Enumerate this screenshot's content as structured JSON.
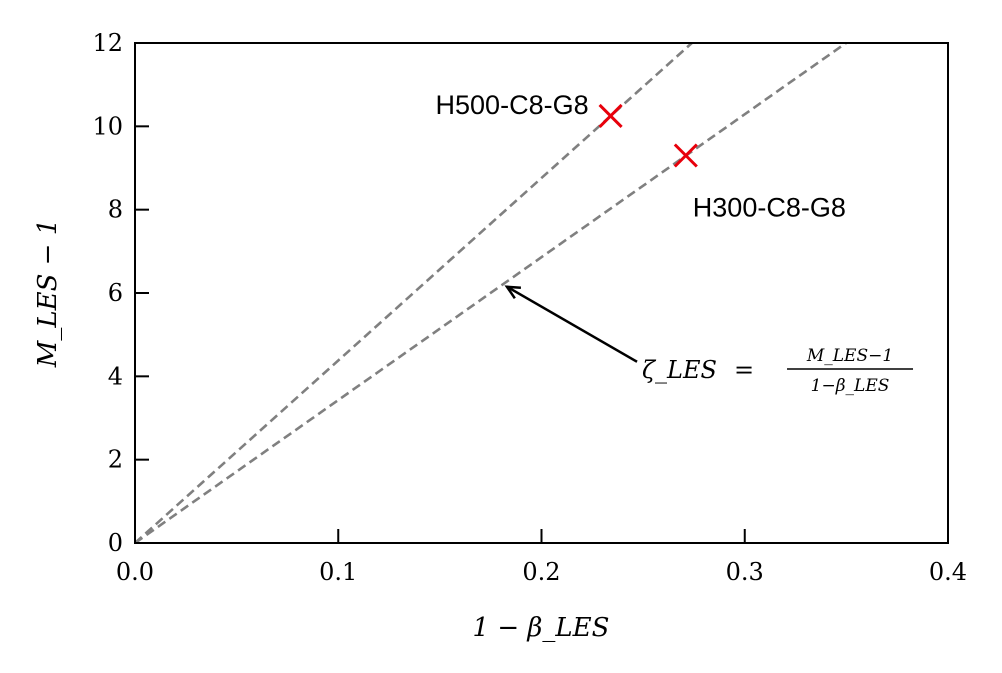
{
  "chart_data": {
    "type": "scatter",
    "xlabel": "1 − β_LES",
    "ylabel": "M_LES − 1",
    "xlim": [
      0.0,
      0.4
    ],
    "ylim": [
      0,
      12
    ],
    "x_ticks": [
      0.0,
      0.1,
      0.2,
      0.3,
      0.4
    ],
    "x_tick_labels": [
      "0.0",
      "0.1",
      "0.2",
      "0.3",
      "0.4"
    ],
    "y_ticks": [
      0,
      2,
      4,
      6,
      8,
      10,
      12
    ],
    "y_tick_labels": [
      "0",
      "2",
      "4",
      "6",
      "8",
      "10",
      "12"
    ],
    "grid": false,
    "points": [
      {
        "label": "H500-C8-G8",
        "x": 0.234,
        "y": 10.25,
        "marker": "x",
        "color": "#e8000b"
      },
      {
        "label": "H300-C8-G8",
        "x": 0.271,
        "y": 9.3,
        "marker": "x",
        "color": "#e8000b"
      }
    ],
    "reference_lines": [
      {
        "slope": 43.8,
        "style": "dashed",
        "color": "#808080"
      },
      {
        "slope": 34.3,
        "style": "dashed",
        "color": "#808080"
      }
    ],
    "annotation": {
      "symbol": "ζ_LES",
      "equals": "=",
      "numerator": "M_LES−1",
      "denominator": "1−β_LES",
      "arrow_to": {
        "x": 0.183,
        "y": 6.15
      },
      "arrow_from": {
        "x": 0.247,
        "y": 4.35
      }
    }
  }
}
